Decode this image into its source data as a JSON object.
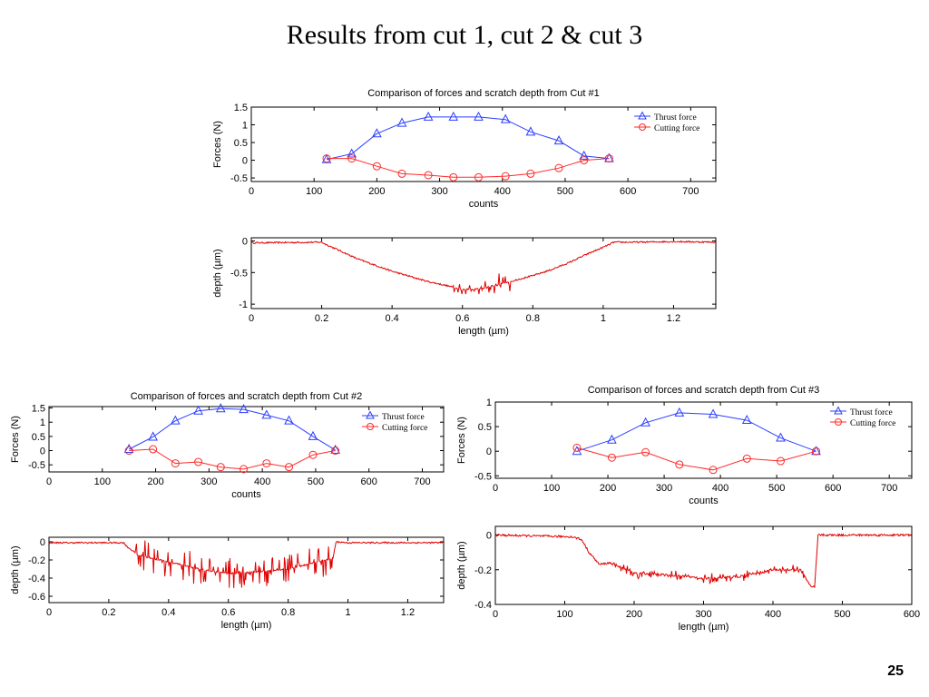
{
  "slide": {
    "title": "Results from cut 1, cut 2 & cut 3",
    "page_number": "25"
  },
  "chart_data": [
    {
      "type": "line",
      "title": "Comparison of forces and scratch depth from Cut #1",
      "xlabel": "counts",
      "ylabel": "Forces (N)",
      "xlim": [
        0,
        740
      ],
      "ylim": [
        -0.6,
        1.5
      ],
      "xticks": [
        "0",
        "100",
        "200",
        "300",
        "400",
        "500",
        "600",
        "700"
      ],
      "yticks": [
        "-0.5",
        "0",
        "0.5",
        "1",
        "1.5"
      ],
      "legend_position": "top-right",
      "series": [
        {
          "name": "Thrust force",
          "color": "#2b3fff",
          "marker": "triangle",
          "x": [
            120,
            160,
            200,
            240,
            282,
            322,
            362,
            405,
            445,
            490,
            530,
            570
          ],
          "y": [
            0.02,
            0.18,
            0.75,
            1.05,
            1.22,
            1.22,
            1.22,
            1.15,
            0.8,
            0.55,
            0.12,
            0.05
          ]
        },
        {
          "name": "Cutting force",
          "color": "#ff2a2a",
          "marker": "circle",
          "x": [
            120,
            160,
            200,
            240,
            282,
            322,
            362,
            405,
            445,
            490,
            530,
            570
          ],
          "y": [
            0.05,
            0.05,
            -0.17,
            -0.38,
            -0.42,
            -0.48,
            -0.48,
            -0.45,
            -0.38,
            -0.22,
            0.0,
            0.05
          ]
        }
      ]
    },
    {
      "type": "line",
      "title": "",
      "xlabel": "length (µm)",
      "ylabel": "depth (µm)",
      "xlim": [
        0,
        1.32
      ],
      "ylim": [
        -1.07,
        0.05
      ],
      "xticks": [
        "0",
        "0.2",
        "0.4",
        "0.6",
        "0.8",
        "1",
        "1.2"
      ],
      "yticks": [
        "-1",
        "-0.5",
        "0"
      ],
      "series": [
        {
          "name": "",
          "color": "#e00000",
          "noise": 0.012,
          "spikes": [
            [
              0.57,
              0.72,
              0.12
            ],
            [
              0.7,
              0.75,
              0.15
            ]
          ],
          "x": [
            0,
            0.2,
            0.21,
            0.25,
            0.3,
            0.35,
            0.4,
            0.45,
            0.5,
            0.55,
            0.6,
            0.65,
            0.7,
            0.75,
            0.8,
            0.85,
            0.9,
            0.95,
            1.0,
            1.02,
            1.03,
            1.1,
            1.2,
            1.32
          ],
          "y": [
            -0.03,
            -0.02,
            -0.05,
            -0.15,
            -0.28,
            -0.38,
            -0.48,
            -0.56,
            -0.64,
            -0.7,
            -0.77,
            -0.76,
            -0.7,
            -0.62,
            -0.55,
            -0.46,
            -0.35,
            -0.22,
            -0.1,
            -0.05,
            -0.02,
            -0.02,
            -0.01,
            -0.02
          ]
        }
      ]
    },
    {
      "type": "line",
      "title": "Comparison of forces and scratch depth from Cut #2",
      "xlabel": "counts",
      "ylabel": "Forces (N)",
      "xlim": [
        0,
        740
      ],
      "ylim": [
        -0.75,
        1.55
      ],
      "xticks": [
        "0",
        "100",
        "200",
        "300",
        "400",
        "500",
        "600",
        "700"
      ],
      "yticks": [
        "-0.5",
        "0",
        "0.5",
        "1",
        "1.5"
      ],
      "legend_position": "top-right",
      "series": [
        {
          "name": "Thrust force",
          "color": "#2b3fff",
          "marker": "triangle",
          "x": [
            150,
            195,
            237,
            280,
            322,
            365,
            408,
            450,
            495,
            537
          ],
          "y": [
            0.05,
            0.48,
            1.05,
            1.4,
            1.48,
            1.45,
            1.25,
            1.05,
            0.5,
            0.02
          ]
        },
        {
          "name": "Cutting force",
          "color": "#ff2a2a",
          "marker": "circle",
          "x": [
            150,
            195,
            237,
            280,
            322,
            365,
            408,
            450,
            495,
            537
          ],
          "y": [
            0.0,
            0.05,
            -0.45,
            -0.4,
            -0.58,
            -0.65,
            -0.45,
            -0.58,
            -0.15,
            0.0
          ]
        }
      ]
    },
    {
      "type": "line",
      "title": "",
      "xlabel": "length (µm)",
      "ylabel": "depth (µm)",
      "xlim": [
        0,
        1.32
      ],
      "ylim": [
        -0.67,
        0.05
      ],
      "xticks": [
        "0",
        "0.2",
        "0.4",
        "0.6",
        "0.8",
        "1",
        "1.2"
      ],
      "yticks": [
        "-0.6",
        "-0.4",
        "-0.2",
        "0"
      ],
      "series": [
        {
          "name": "",
          "color": "#e00000",
          "noise": 0.008,
          "spikes": [
            [
              0.28,
              0.95,
              0.18
            ]
          ],
          "x": [
            0,
            0.25,
            0.26,
            0.3,
            0.4,
            0.5,
            0.6,
            0.7,
            0.8,
            0.9,
            0.95,
            0.96,
            1.0,
            1.32
          ],
          "y": [
            -0.01,
            -0.01,
            -0.05,
            -0.15,
            -0.22,
            -0.3,
            -0.35,
            -0.33,
            -0.3,
            -0.22,
            -0.18,
            0.0,
            -0.01,
            -0.01
          ]
        }
      ]
    },
    {
      "type": "line",
      "title": "Comparison of forces and scratch depth from Cut #3",
      "xlabel": "counts",
      "ylabel": "Forces (N)",
      "xlim": [
        0,
        740
      ],
      "ylim": [
        -0.55,
        1.0
      ],
      "xticks": [
        "0",
        "100",
        "200",
        "300",
        "400",
        "500",
        "600",
        "700"
      ],
      "yticks": [
        "-0.5",
        "0",
        "0.5",
        "1"
      ],
      "legend_position": "top-right",
      "series": [
        {
          "name": "Thrust force",
          "color": "#2b3fff",
          "marker": "triangle",
          "x": [
            145,
            207,
            267,
            327,
            387,
            447,
            507,
            570
          ],
          "y": [
            0.0,
            0.23,
            0.58,
            0.78,
            0.75,
            0.63,
            0.27,
            0.0
          ]
        },
        {
          "name": "Cutting force",
          "color": "#ff2a2a",
          "marker": "circle",
          "x": [
            145,
            207,
            267,
            327,
            387,
            447,
            507,
            570
          ],
          "y": [
            0.07,
            -0.13,
            -0.02,
            -0.27,
            -0.38,
            -0.15,
            -0.2,
            0.0
          ]
        }
      ]
    },
    {
      "type": "line",
      "title": "",
      "xlabel": "length (µm)",
      "ylabel": "depth (µm)",
      "xlim": [
        0,
        600
      ],
      "ylim": [
        -0.4,
        0.05
      ],
      "xticks": [
        "0",
        "100",
        "200",
        "300",
        "400",
        "500",
        "600"
      ],
      "yticks": [
        "-0.4",
        "-0.2",
        "0"
      ],
      "series": [
        {
          "name": "",
          "color": "#e00000",
          "noise": 0.006,
          "spikes": [
            [
              170,
              455,
              0.03
            ]
          ],
          "x": [
            0,
            110,
            120,
            125,
            135,
            150,
            165,
            200,
            250,
            300,
            350,
            400,
            440,
            455,
            460,
            465,
            600
          ],
          "y": [
            0.0,
            -0.01,
            -0.02,
            -0.03,
            -0.1,
            -0.17,
            -0.16,
            -0.22,
            -0.23,
            -0.25,
            -0.24,
            -0.2,
            -0.2,
            -0.3,
            -0.3,
            0.0,
            0.0
          ]
        }
      ]
    }
  ]
}
